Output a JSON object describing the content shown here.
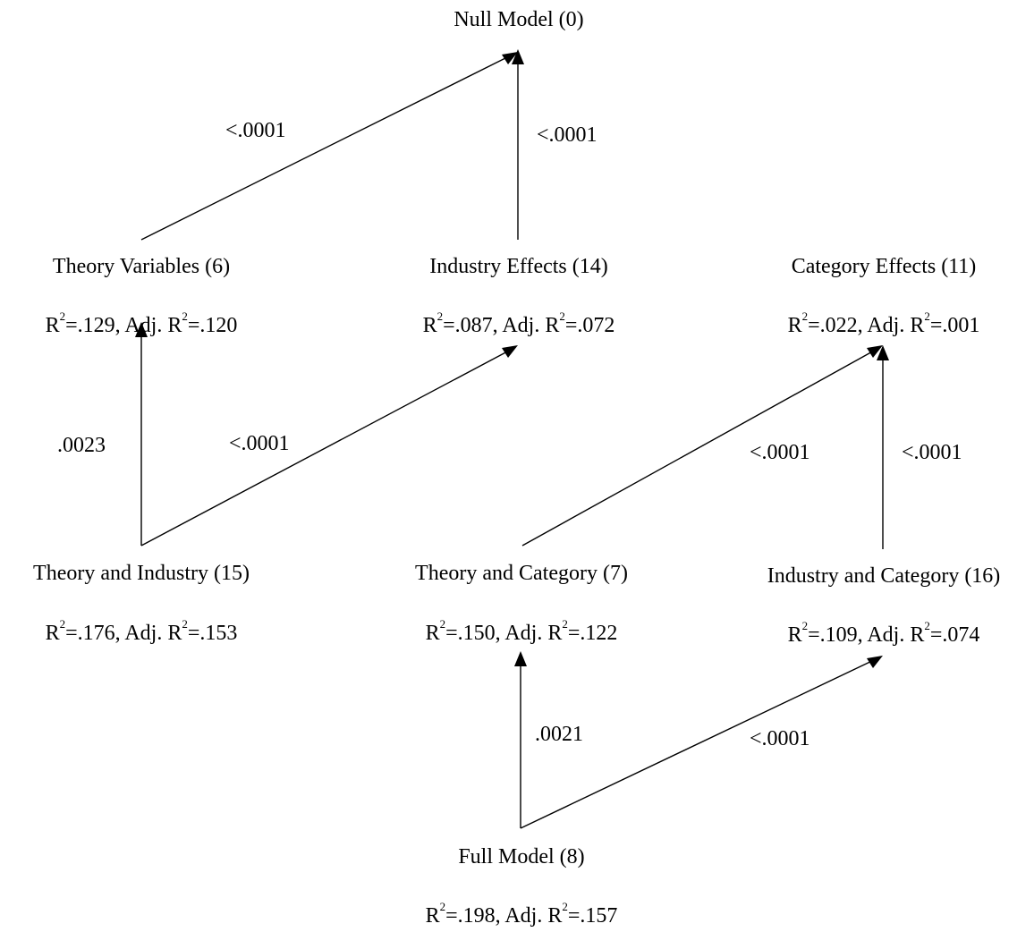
{
  "nodes": {
    "null_model": {
      "title": "Null Model (0)"
    },
    "theory_variables": {
      "title": "Theory Variables (6)",
      "r2": "=.129, Adj. R",
      "adj_r2": "=.120"
    },
    "industry_effects": {
      "title": "Industry Effects (14)",
      "r2": "=.087, Adj. R",
      "adj_r2": "=.072"
    },
    "category_effects": {
      "title": "Category Effects (11)",
      "r2": "=.022, Adj. R",
      "adj_r2": "=.001"
    },
    "theory_and_industry": {
      "title": "Theory and Industry (15)",
      "r2": "=.176, Adj. R",
      "adj_r2": "=.153"
    },
    "theory_and_category": {
      "title": "Theory and Category (7)",
      "r2": "=.150, Adj. R",
      "adj_r2": "=.122"
    },
    "industry_and_category": {
      "title": "Industry and Category (16)",
      "r2": "=.109, Adj. R",
      "adj_r2": "=.074"
    },
    "full_model": {
      "title": "Full Model (8)",
      "r2": "=.198, Adj. R",
      "adj_r2": "=.157"
    }
  },
  "stat_symbols": {
    "r": "R",
    "power": "2"
  },
  "edges": [
    {
      "from": "theory_variables",
      "to": "null_model",
      "label": "<.0001"
    },
    {
      "from": "industry_effects",
      "to": "null_model",
      "label": "<.0001"
    },
    {
      "from": "theory_and_industry",
      "to": "theory_variables",
      "label": ".0023"
    },
    {
      "from": "theory_and_industry",
      "to": "industry_effects",
      "label": "<.0001"
    },
    {
      "from": "theory_and_category",
      "to": "category_effects",
      "label": "<.0001"
    },
    {
      "from": "industry_and_category",
      "to": "category_effects",
      "label": "<.0001"
    },
    {
      "from": "full_model",
      "to": "theory_and_category",
      "label": ".0021"
    },
    {
      "from": "full_model",
      "to": "industry_and_category",
      "label": "<.0001"
    }
  ]
}
